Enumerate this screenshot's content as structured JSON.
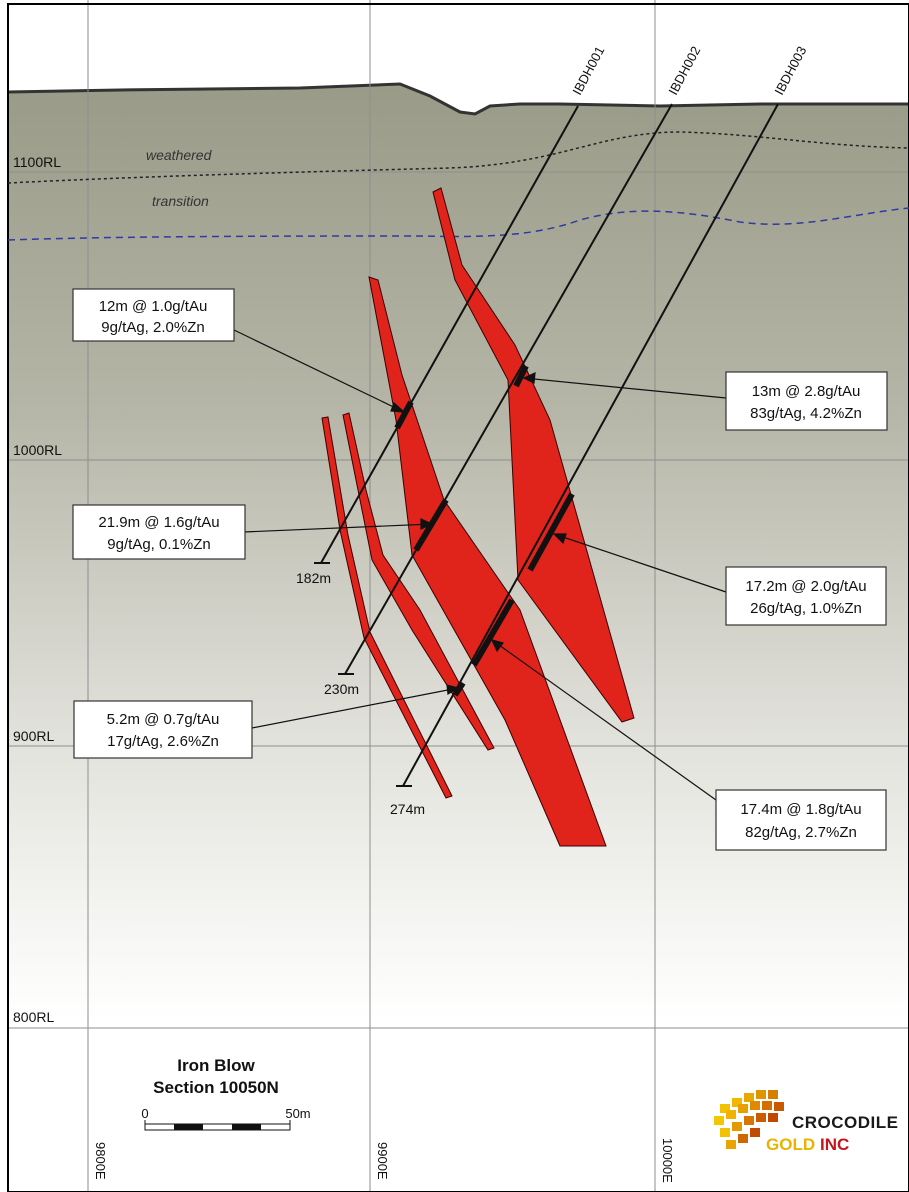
{
  "title": {
    "line1": "Iron Blow",
    "line2": "Section 10050N"
  },
  "scale": {
    "start": "0",
    "end": "50m"
  },
  "rl_labels": [
    "1100RL",
    "1000RL",
    "900RL",
    "800RL"
  ],
  "easting_labels": [
    "9800E",
    "9900E",
    "10000E"
  ],
  "zones": {
    "weathered": "weathered",
    "transition": "transition"
  },
  "drillholes": [
    {
      "name": "IBDH001",
      "depth": "182m"
    },
    {
      "name": "IBDH002",
      "depth": "230m"
    },
    {
      "name": "IBDH003",
      "depth": "274m"
    }
  ],
  "intercepts": [
    {
      "line1": "12m @ 1.0g/tAu",
      "line2": "9g/tAg, 2.0%Zn"
    },
    {
      "line1": "13m @ 2.8g/tAu",
      "line2": "83g/tAg, 4.2%Zn"
    },
    {
      "line1": "21.9m @ 1.6g/tAu",
      "line2": "9g/tAg, 0.1%Zn"
    },
    {
      "line1": "17.2m @ 2.0g/tAu",
      "line2": "26g/tAg, 1.0%Zn"
    },
    {
      "line1": "5.2m @ 0.7g/tAu",
      "line2": "17g/tAg, 2.6%Zn"
    },
    {
      "line1": "17.4m @ 1.8g/tAu",
      "line2": "82g/tAg, 2.7%Zn"
    }
  ],
  "logo": {
    "top": "CROCODILE",
    "bottom_a": "GOLD",
    "bottom_b": "INC"
  },
  "colors": {
    "ore": "#e0231b",
    "ground_top": "#9a9a88",
    "ground_bottom": "#ffffff",
    "grid": "#8e8e8e",
    "transition_line": "#2f3b9e"
  }
}
